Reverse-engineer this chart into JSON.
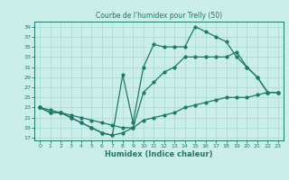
{
  "title": "Courbe de l'humidex pour Trelly (50)",
  "xlabel": "Humidex (Indice chaleur)",
  "bg_color": "#cceee8",
  "grid_color": "#aaddda",
  "line_color": "#1a7a6a",
  "xlim": [
    -0.5,
    23.5
  ],
  "ylim": [
    16.5,
    40
  ],
  "xticks": [
    0,
    1,
    2,
    3,
    4,
    5,
    6,
    7,
    8,
    9,
    10,
    11,
    12,
    13,
    14,
    15,
    16,
    17,
    18,
    19,
    20,
    21,
    22,
    23
  ],
  "yticks": [
    17,
    19,
    21,
    23,
    25,
    27,
    29,
    31,
    33,
    35,
    37,
    39
  ],
  "line1_x": [
    0,
    1,
    2,
    3,
    4,
    5,
    6,
    7,
    8,
    9,
    10,
    11,
    12,
    13,
    14,
    15,
    16,
    17,
    18,
    19,
    20,
    21,
    22,
    23
  ],
  "line1_y": [
    23,
    22,
    22,
    21,
    20,
    19,
    18,
    17.5,
    29.5,
    20,
    31,
    35.5,
    35,
    35,
    35,
    39,
    38,
    37,
    36,
    33,
    31,
    29,
    26,
    26
  ],
  "line2_x": [
    0,
    1,
    2,
    3,
    4,
    5,
    6,
    7,
    8,
    9,
    10,
    11,
    12,
    13,
    14,
    15,
    16,
    17,
    18,
    19,
    20,
    21,
    22,
    23
  ],
  "line2_y": [
    23,
    22,
    22,
    21,
    20,
    19,
    18,
    17.5,
    18,
    19,
    26,
    28,
    30,
    31,
    33,
    33,
    33,
    33,
    33,
    34,
    31,
    29,
    26,
    26
  ],
  "line3_x": [
    0,
    1,
    2,
    3,
    4,
    5,
    6,
    7,
    8,
    9,
    10,
    11,
    12,
    13,
    14,
    15,
    16,
    17,
    18,
    19,
    20,
    21,
    22,
    23
  ],
  "line3_y": [
    23,
    22.5,
    22,
    21.5,
    21,
    20.5,
    20,
    19.5,
    19,
    19,
    20.5,
    21,
    21.5,
    22,
    23,
    23.5,
    24,
    24.5,
    25,
    25,
    25,
    25.5,
    26,
    26
  ]
}
